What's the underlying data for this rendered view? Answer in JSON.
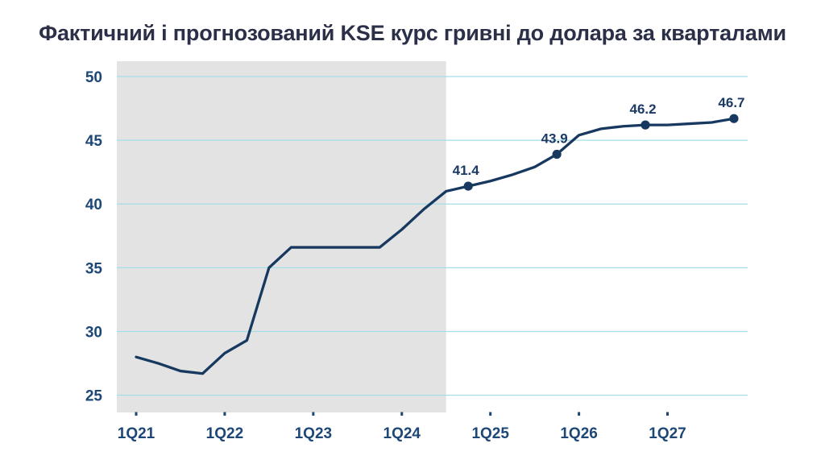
{
  "title": "Фактичний і прогнозований KSE курс гривні до долара за кварталами",
  "colors": {
    "title_text": "#2b3048",
    "axis_label": "#1d4776",
    "tick_mark": "#1d4776",
    "line": "#17395f",
    "marker": "#17395f",
    "point_label": "#1b3a66",
    "gridline": "#a5dde9",
    "shade": "#e3e3e3",
    "background": "#ffffff"
  },
  "chart_data": {
    "type": "line",
    "title": "Фактичний і прогнозований KSE курс гривні до долара за кварталами",
    "x": [
      "1Q21",
      "2Q21",
      "3Q21",
      "4Q21",
      "1Q22",
      "2Q22",
      "3Q22",
      "4Q22",
      "1Q23",
      "2Q23",
      "3Q23",
      "4Q23",
      "1Q24",
      "2Q24",
      "3Q24",
      "4Q24",
      "1Q25",
      "2Q25",
      "3Q25",
      "4Q25",
      "1Q26",
      "2Q26",
      "3Q26",
      "4Q26",
      "1Q27",
      "2Q27",
      "3Q27",
      "4Q27"
    ],
    "values": [
      28.0,
      27.5,
      26.9,
      26.7,
      28.3,
      29.3,
      35.0,
      36.6,
      36.6,
      36.6,
      36.6,
      36.6,
      38.0,
      39.6,
      41.0,
      41.4,
      41.8,
      42.3,
      42.9,
      43.9,
      45.4,
      45.9,
      46.1,
      46.2,
      46.2,
      46.3,
      46.4,
      46.7
    ],
    "x_tick_labels": [
      "1Q21",
      "1Q22",
      "1Q23",
      "1Q24",
      "1Q25",
      "1Q26",
      "1Q27"
    ],
    "y_ticks": [
      25,
      30,
      35,
      40,
      45,
      50
    ],
    "ylim": [
      23.65,
      51.2
    ],
    "grid": "horizontal",
    "legend": "none",
    "shaded_region": {
      "from_x": "1Q21",
      "to_x": "3Q24"
    },
    "labeled_points": [
      {
        "x": "4Q24",
        "label": "41.4"
      },
      {
        "x": "4Q25",
        "label": "43.9"
      },
      {
        "x": "4Q26",
        "label": "46.2"
      },
      {
        "x": "4Q27",
        "label": "46.7"
      }
    ]
  }
}
